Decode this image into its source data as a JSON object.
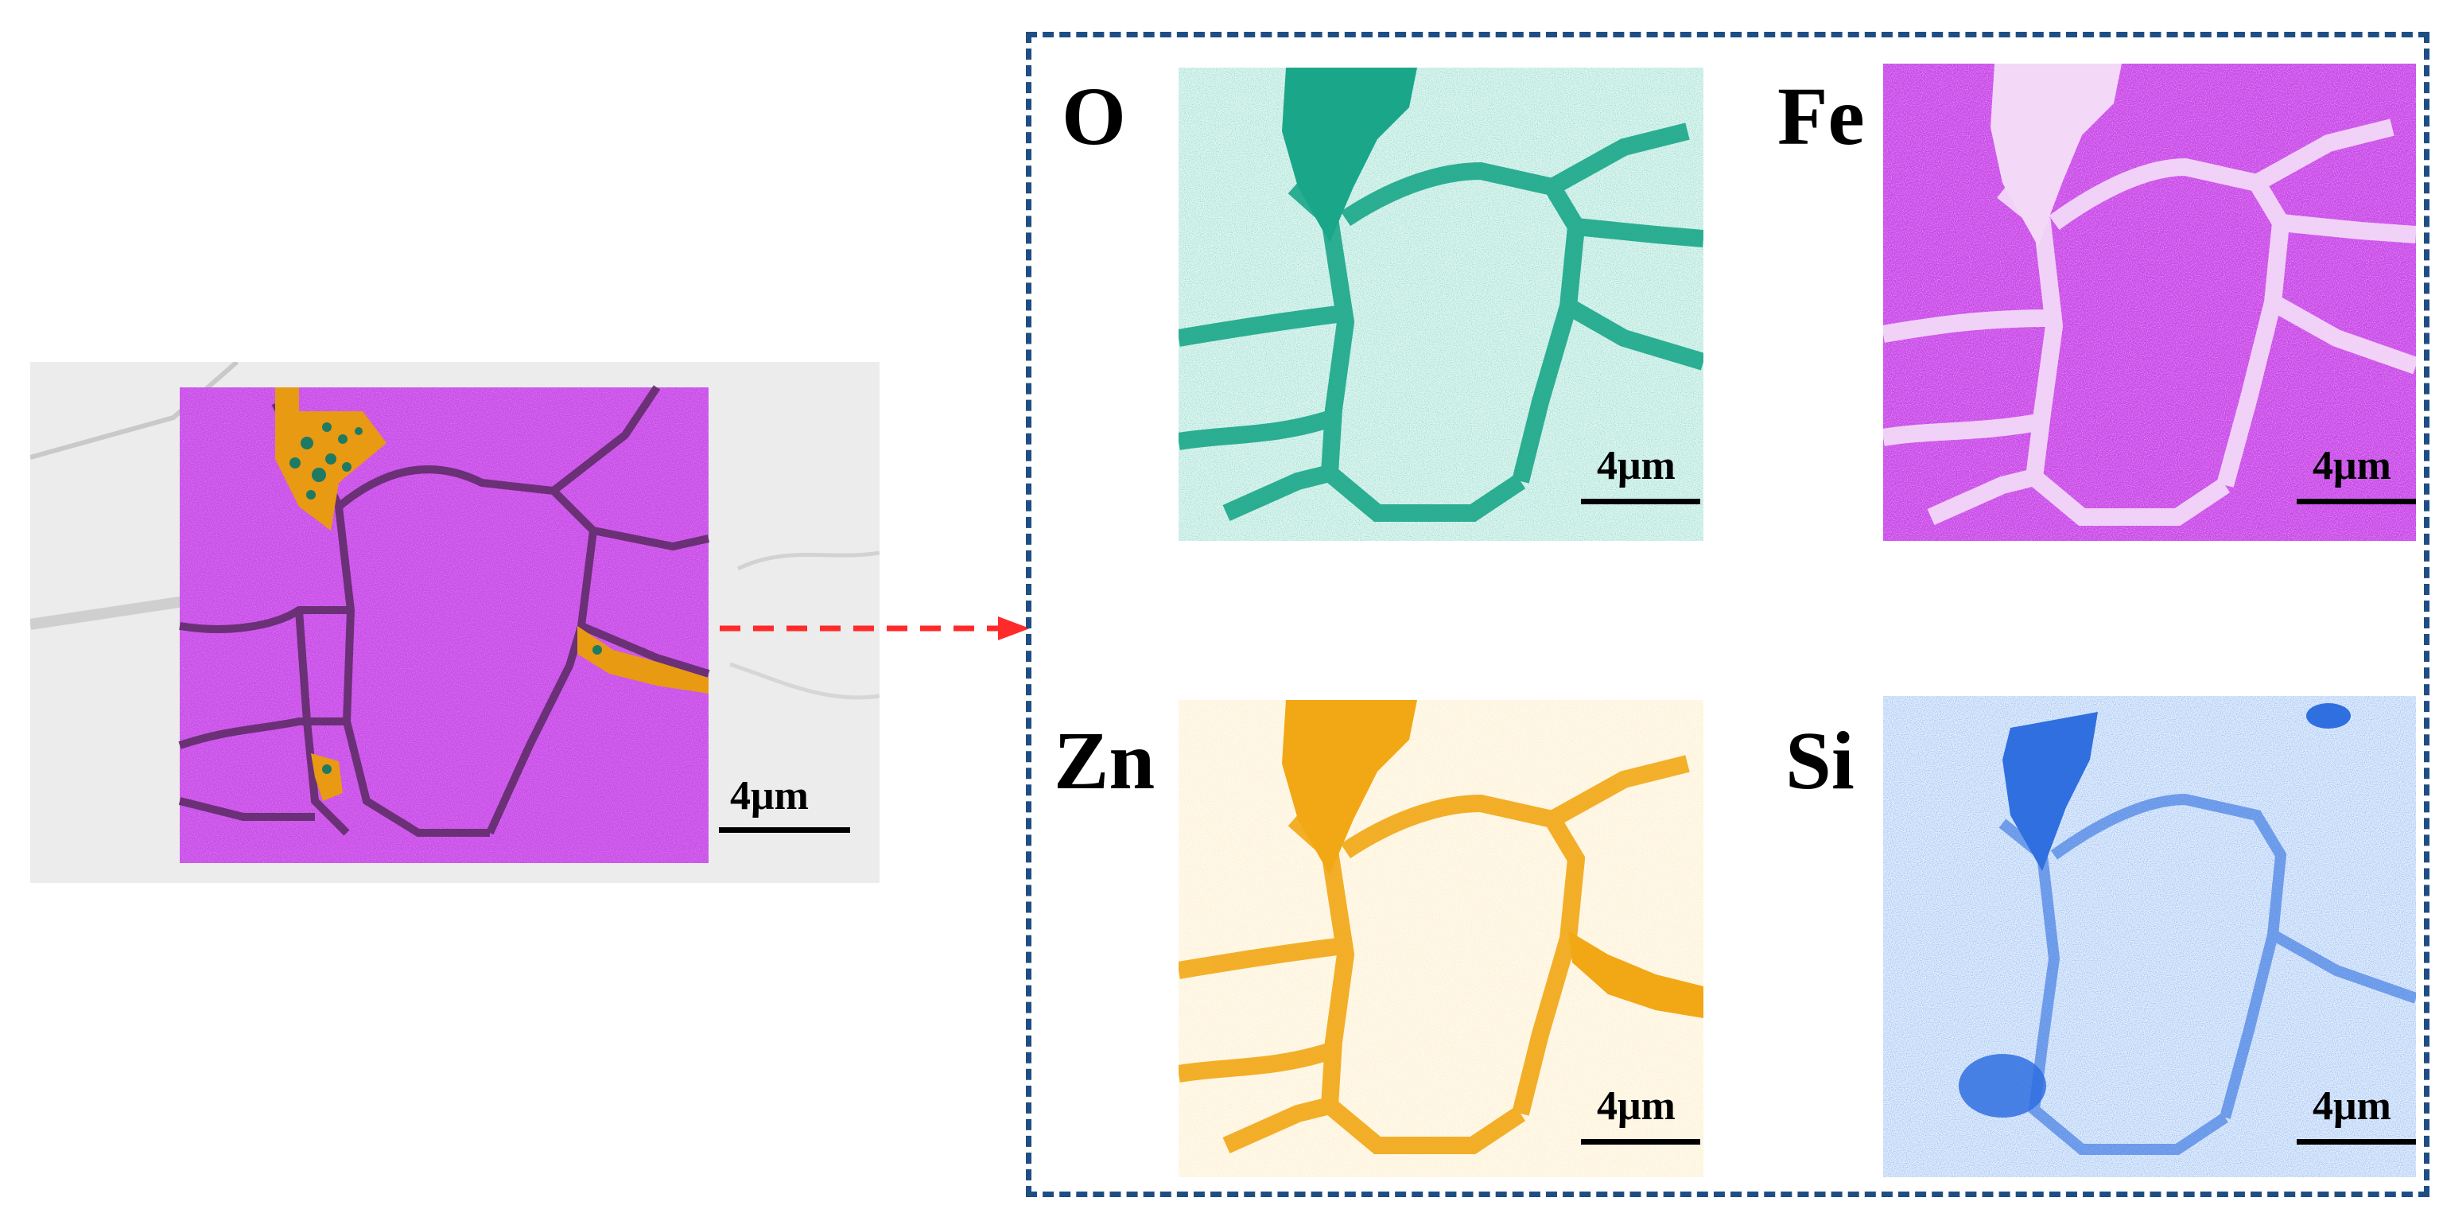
{
  "overview": {
    "scale_label": "4μm",
    "phase_colors": {
      "matrix": "#c84be8",
      "oxide_grain": "#e89a12",
      "oxide_core": "#1f7a63",
      "background_sem": "#ececec",
      "boundary": "#5a2a62"
    }
  },
  "arrow": {
    "color": "#ff2a2a"
  },
  "frame": {
    "color": "#1f4e84"
  },
  "maps": [
    {
      "element": "O",
      "scale_label": "4μm",
      "base_color": "#dff4ee",
      "dot_color": "#33b69a",
      "boundary_color": "#1aa789"
    },
    {
      "element": "Fe",
      "scale_label": "4μm",
      "base_color": "#c94ae8",
      "dot_color": "#e07ff3",
      "boundary_color": "#f3d8f8"
    },
    {
      "element": "Zn",
      "scale_label": "4μm",
      "base_color": "#fff9ec",
      "dot_color": "#f6c35c",
      "boundary_color": "#f2a715"
    },
    {
      "element": "Si",
      "scale_label": "4μm",
      "base_color": "#e8eefb",
      "dot_color": "#5f8ee8",
      "boundary_color": "#2f6fe0"
    }
  ]
}
